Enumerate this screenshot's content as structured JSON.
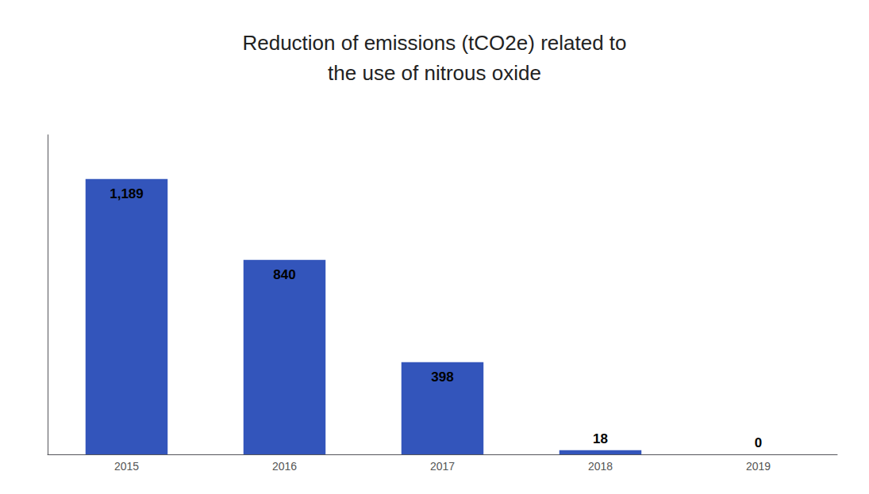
{
  "chart_data": {
    "type": "bar",
    "title": "Reduction of emissions (tCO2e) related to\nthe use of nitrous oxide",
    "categories": [
      "2015",
      "2016",
      "2017",
      "2018",
      "2019"
    ],
    "values": [
      1189,
      840,
      398,
      18,
      0
    ],
    "value_labels": [
      "1,189",
      "840",
      "398",
      "18",
      "0"
    ],
    "data_labels": true,
    "color": "#3355BB",
    "ylim": [
      0,
      1380
    ],
    "grid": false,
    "tick_labels": "x"
  }
}
